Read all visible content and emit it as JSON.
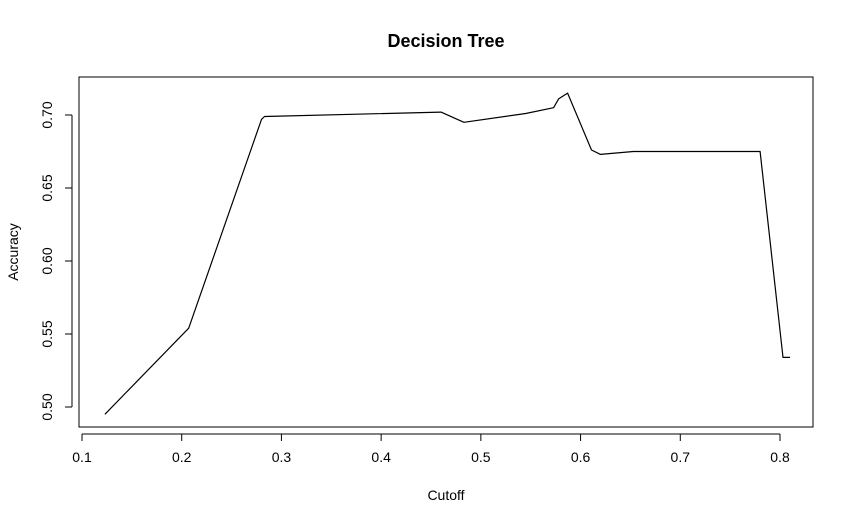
{
  "chart_data": {
    "type": "line",
    "title": "Decision Tree",
    "xlabel": "Cutoff",
    "ylabel": "Accuracy",
    "xlim": [
      0.1,
      0.8
    ],
    "ylim": [
      0.5,
      0.7
    ],
    "x_ticks": [
      {
        "value": 0.1,
        "label": "0.1"
      },
      {
        "value": 0.2,
        "label": "0.2"
      },
      {
        "value": 0.3,
        "label": "0.3"
      },
      {
        "value": 0.4,
        "label": "0.4"
      },
      {
        "value": 0.5,
        "label": "0.5"
      },
      {
        "value": 0.6,
        "label": "0.6"
      },
      {
        "value": 0.7,
        "label": "0.7"
      },
      {
        "value": 0.8,
        "label": "0.8"
      }
    ],
    "y_ticks": [
      {
        "value": 0.5,
        "label": "0.50"
      },
      {
        "value": 0.55,
        "label": "0.55"
      },
      {
        "value": 0.6,
        "label": "0.60"
      },
      {
        "value": 0.65,
        "label": "0.65"
      },
      {
        "value": 0.7,
        "label": "0.70"
      }
    ],
    "series": [
      {
        "name": "Accuracy",
        "color": "#000000",
        "x": [
          0.123,
          0.207,
          0.28,
          0.283,
          0.46,
          0.483,
          0.545,
          0.573,
          0.578,
          0.587,
          0.611,
          0.62,
          0.653,
          0.78,
          0.803,
          0.81
        ],
        "y": [
          0.495,
          0.554,
          0.697,
          0.699,
          0.702,
          0.695,
          0.701,
          0.705,
          0.711,
          0.715,
          0.676,
          0.673,
          0.675,
          0.675,
          0.534,
          0.534
        ]
      }
    ]
  }
}
